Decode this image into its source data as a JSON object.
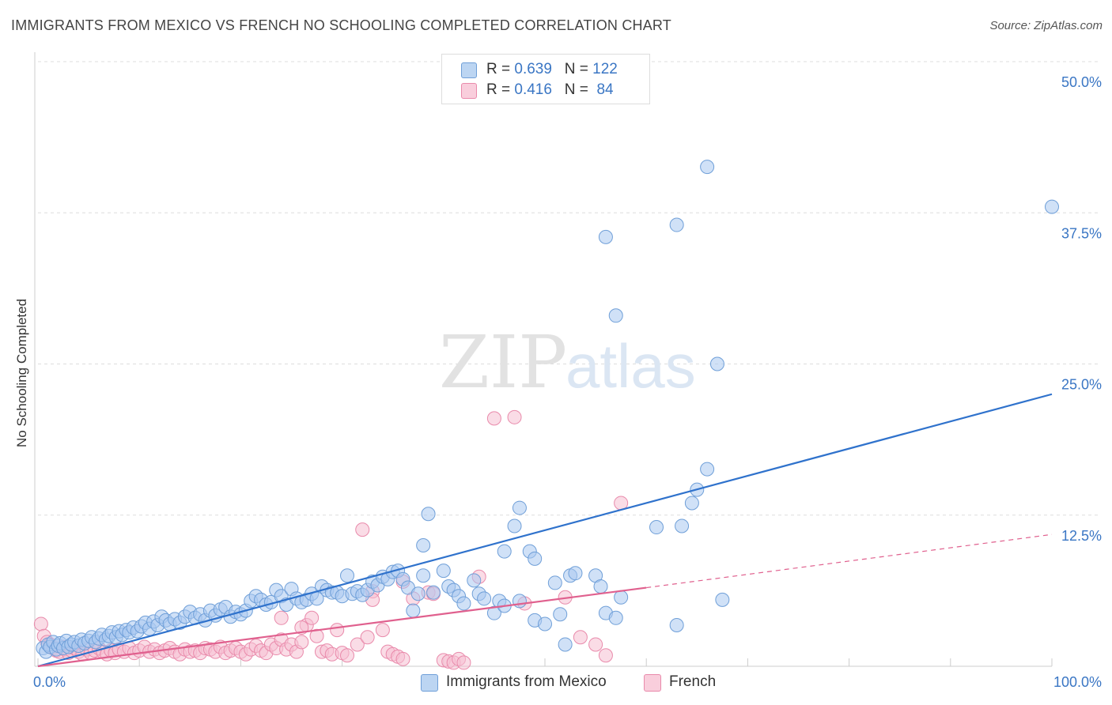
{
  "header": {
    "title": "IMMIGRANTS FROM MEXICO VS FRENCH NO SCHOOLING COMPLETED CORRELATION CHART",
    "source": "Source: ZipAtlas.com"
  },
  "watermark": {
    "zip": "ZIP",
    "atlas": "atlas"
  },
  "legend": {
    "r_label": "R =",
    "n_label": "N =",
    "series": [
      {
        "name": "Immigrants from Mexico",
        "r": "0.639",
        "n": "122",
        "color": "#7fb0e8"
      },
      {
        "name": "French",
        "r": "0.416",
        "n": "84",
        "color": "#f4a7c0"
      }
    ]
  },
  "colors": {
    "blue_fill": "#a9c9f0",
    "blue_stroke": "#6f9fd8",
    "blue_line": "#2f72cc",
    "pink_fill": "#f6c0d2",
    "pink_stroke": "#e98aab",
    "pink_line": "#e0608e",
    "grid": "#dddddd",
    "tick_label": "#3a76c4"
  },
  "chart_data": {
    "type": "scatter",
    "title": "IMMIGRANTS FROM MEXICO VS FRENCH NO SCHOOLING COMPLETED CORRELATION CHART",
    "xlabel": "",
    "ylabel": "No Schooling Completed",
    "xlim": [
      0,
      100
    ],
    "ylim": [
      0,
      50
    ],
    "x_tick_labels": [
      "0.0%",
      "100.0%"
    ],
    "y_ticks": [
      12.5,
      25.0,
      37.5,
      50.0
    ],
    "y_tick_labels": [
      "12.5%",
      "25.0%",
      "37.5%",
      "50.0%"
    ],
    "series": [
      {
        "name": "Immigrants from Mexico",
        "trend": {
          "x": [
            0,
            100
          ],
          "y": [
            0.0,
            22.5
          ],
          "dashed": false
        },
        "points": [
          [
            0.5,
            1.5
          ],
          [
            0.8,
            1.2
          ],
          [
            1.0,
            1.8
          ],
          [
            1.2,
            1.6
          ],
          [
            1.5,
            2.0
          ],
          [
            1.8,
            1.4
          ],
          [
            2.0,
            1.7
          ],
          [
            2.2,
            1.9
          ],
          [
            2.5,
            1.5
          ],
          [
            2.8,
            2.1
          ],
          [
            3.0,
            1.6
          ],
          [
            3.3,
            1.8
          ],
          [
            3.6,
            2.0
          ],
          [
            4.0,
            1.7
          ],
          [
            4.3,
            2.2
          ],
          [
            4.6,
            1.9
          ],
          [
            5.0,
            2.1
          ],
          [
            5.3,
            2.4
          ],
          [
            5.7,
            2.0
          ],
          [
            6.0,
            2.3
          ],
          [
            6.3,
            2.6
          ],
          [
            6.7,
            2.2
          ],
          [
            7.0,
            2.5
          ],
          [
            7.3,
            2.8
          ],
          [
            7.7,
            2.4
          ],
          [
            8.0,
            2.9
          ],
          [
            8.3,
            2.6
          ],
          [
            8.7,
            3.0
          ],
          [
            9.0,
            2.8
          ],
          [
            9.4,
            3.2
          ],
          [
            9.8,
            2.9
          ],
          [
            10.2,
            3.3
          ],
          [
            10.6,
            3.6
          ],
          [
            11.0,
            3.1
          ],
          [
            11.4,
            3.7
          ],
          [
            11.8,
            3.4
          ],
          [
            12.2,
            4.1
          ],
          [
            12.6,
            3.8
          ],
          [
            13.0,
            3.5
          ],
          [
            13.5,
            3.9
          ],
          [
            14.0,
            3.6
          ],
          [
            14.5,
            4.1
          ],
          [
            15.0,
            4.5
          ],
          [
            15.5,
            4.0
          ],
          [
            16.0,
            4.3
          ],
          [
            16.5,
            3.8
          ],
          [
            17.0,
            4.6
          ],
          [
            17.5,
            4.2
          ],
          [
            18.0,
            4.7
          ],
          [
            18.5,
            4.9
          ],
          [
            19.0,
            4.1
          ],
          [
            19.5,
            4.5
          ],
          [
            20.0,
            4.3
          ],
          [
            20.5,
            4.6
          ],
          [
            21.0,
            5.4
          ],
          [
            21.5,
            5.8
          ],
          [
            22.0,
            5.5
          ],
          [
            22.5,
            5.1
          ],
          [
            23.0,
            5.3
          ],
          [
            23.5,
            6.3
          ],
          [
            24.0,
            5.8
          ],
          [
            24.5,
            5.1
          ],
          [
            25.0,
            6.4
          ],
          [
            25.5,
            5.6
          ],
          [
            26.0,
            5.3
          ],
          [
            26.5,
            5.5
          ],
          [
            27.0,
            6.0
          ],
          [
            27.5,
            5.6
          ],
          [
            28.0,
            6.6
          ],
          [
            28.5,
            6.3
          ],
          [
            29.0,
            6.1
          ],
          [
            29.5,
            6.1
          ],
          [
            30.0,
            5.8
          ],
          [
            30.5,
            7.5
          ],
          [
            31.0,
            6.0
          ],
          [
            31.5,
            6.2
          ],
          [
            32.0,
            5.9
          ],
          [
            32.5,
            6.3
          ],
          [
            33.0,
            7.0
          ],
          [
            33.5,
            6.7
          ],
          [
            34.0,
            7.4
          ],
          [
            34.5,
            7.2
          ],
          [
            35.0,
            7.8
          ],
          [
            35.5,
            7.9
          ],
          [
            36.0,
            7.2
          ],
          [
            36.5,
            6.5
          ],
          [
            37.0,
            4.6
          ],
          [
            37.5,
            6.0
          ],
          [
            38.0,
            7.5
          ],
          [
            39.0,
            6.1
          ],
          [
            40.0,
            7.9
          ],
          [
            40.5,
            6.6
          ],
          [
            41.0,
            6.3
          ],
          [
            41.5,
            5.8
          ],
          [
            42.0,
            5.2
          ],
          [
            43.0,
            7.1
          ],
          [
            43.5,
            6.0
          ],
          [
            44.0,
            5.6
          ],
          [
            45.0,
            4.4
          ],
          [
            45.5,
            5.4
          ],
          [
            46.0,
            5.0
          ],
          [
            47.5,
            5.4
          ],
          [
            48.5,
            9.5
          ],
          [
            49.0,
            3.8
          ],
          [
            50.0,
            3.5
          ],
          [
            51.0,
            6.9
          ],
          [
            51.5,
            4.3
          ],
          [
            52.0,
            1.8
          ],
          [
            52.5,
            7.5
          ],
          [
            53.0,
            7.7
          ],
          [
            55.0,
            7.5
          ],
          [
            55.5,
            6.6
          ],
          [
            56.0,
            4.4
          ],
          [
            57.0,
            4.0
          ],
          [
            57.5,
            5.7
          ],
          [
            38.0,
            10.0
          ],
          [
            38.5,
            12.6
          ],
          [
            46.0,
            9.5
          ],
          [
            47.0,
            11.6
          ],
          [
            47.5,
            13.1
          ],
          [
            49.0,
            8.9
          ],
          [
            61.0,
            11.5
          ],
          [
            63.5,
            11.6
          ],
          [
            64.5,
            13.5
          ],
          [
            65.0,
            14.6
          ],
          [
            66.0,
            16.3
          ],
          [
            63.0,
            3.4
          ],
          [
            67.5,
            5.5
          ],
          [
            57.0,
            29.0
          ],
          [
            56.0,
            35.5
          ],
          [
            63.0,
            36.5
          ],
          [
            67.0,
            25.0
          ],
          [
            66.0,
            41.3
          ],
          [
            100.0,
            38.0
          ]
        ]
      },
      {
        "name": "French",
        "trend": {
          "x": [
            0,
            60,
            100
          ],
          "y": [
            0.0,
            6.5,
            10.9
          ],
          "dashed_after": 60
        },
        "points": [
          [
            0.3,
            3.5
          ],
          [
            0.6,
            2.5
          ],
          [
            0.9,
            2.0
          ],
          [
            1.2,
            1.8
          ],
          [
            1.5,
            1.5
          ],
          [
            1.8,
            1.3
          ],
          [
            2.1,
            1.2
          ],
          [
            2.4,
            1.6
          ],
          [
            2.7,
            1.4
          ],
          [
            3.0,
            1.1
          ],
          [
            3.3,
            1.3
          ],
          [
            3.6,
            1.5
          ],
          [
            4.0,
            1.2
          ],
          [
            4.4,
            1.0
          ],
          [
            4.8,
            1.4
          ],
          [
            5.2,
            1.1
          ],
          [
            5.6,
            1.3
          ],
          [
            6.0,
            1.5
          ],
          [
            6.4,
            1.2
          ],
          [
            6.8,
            1.0
          ],
          [
            7.2,
            1.3
          ],
          [
            7.6,
            1.1
          ],
          [
            8.0,
            1.4
          ],
          [
            8.5,
            1.2
          ],
          [
            9.0,
            1.5
          ],
          [
            9.5,
            1.1
          ],
          [
            10.0,
            1.3
          ],
          [
            10.5,
            1.6
          ],
          [
            11.0,
            1.2
          ],
          [
            11.5,
            1.4
          ],
          [
            12.0,
            1.1
          ],
          [
            12.5,
            1.3
          ],
          [
            13.0,
            1.5
          ],
          [
            13.5,
            1.2
          ],
          [
            14.0,
            1.0
          ],
          [
            14.5,
            1.4
          ],
          [
            15.0,
            1.2
          ],
          [
            15.5,
            1.3
          ],
          [
            16.0,
            1.1
          ],
          [
            16.5,
            1.5
          ],
          [
            17.0,
            1.4
          ],
          [
            17.5,
            1.2
          ],
          [
            18.0,
            1.6
          ],
          [
            18.5,
            1.1
          ],
          [
            19.0,
            1.3
          ],
          [
            19.5,
            1.5
          ],
          [
            20.0,
            1.2
          ],
          [
            20.5,
            1.0
          ],
          [
            21.0,
            1.4
          ],
          [
            21.5,
            1.7
          ],
          [
            22.0,
            1.3
          ],
          [
            22.5,
            1.1
          ],
          [
            23.0,
            1.8
          ],
          [
            23.5,
            1.5
          ],
          [
            24.0,
            2.2
          ],
          [
            24.5,
            1.4
          ],
          [
            25.0,
            1.8
          ],
          [
            25.5,
            1.2
          ],
          [
            26.0,
            2.0
          ],
          [
            26.5,
            3.4
          ],
          [
            27.0,
            4.0
          ],
          [
            27.5,
            2.5
          ],
          [
            28.0,
            1.2
          ],
          [
            28.5,
            1.3
          ],
          [
            29.0,
            1.0
          ],
          [
            29.5,
            3.0
          ],
          [
            30.0,
            1.1
          ],
          [
            30.5,
            0.9
          ],
          [
            31.5,
            1.8
          ],
          [
            32.5,
            2.4
          ],
          [
            33.0,
            6.2
          ],
          [
            34.0,
            3.0
          ],
          [
            34.5,
            1.2
          ],
          [
            35.0,
            1.0
          ],
          [
            35.5,
            0.8
          ],
          [
            36.0,
            0.6
          ],
          [
            37.0,
            5.6
          ],
          [
            38.5,
            6.1
          ],
          [
            39.0,
            6.0
          ],
          [
            40.0,
            0.5
          ],
          [
            40.5,
            0.4
          ],
          [
            41.0,
            0.3
          ],
          [
            41.5,
            0.6
          ],
          [
            42.0,
            0.3
          ],
          [
            36.0,
            7.0
          ],
          [
            43.5,
            7.4
          ],
          [
            48.0,
            5.2
          ],
          [
            52.0,
            5.7
          ],
          [
            53.5,
            2.4
          ],
          [
            55.0,
            1.8
          ],
          [
            56.0,
            0.9
          ],
          [
            57.5,
            13.5
          ],
          [
            32.0,
            11.3
          ],
          [
            45.0,
            20.5
          ],
          [
            47.0,
            20.6
          ],
          [
            24.0,
            4.0
          ],
          [
            26.0,
            3.2
          ],
          [
            33.0,
            5.5
          ]
        ]
      }
    ]
  }
}
